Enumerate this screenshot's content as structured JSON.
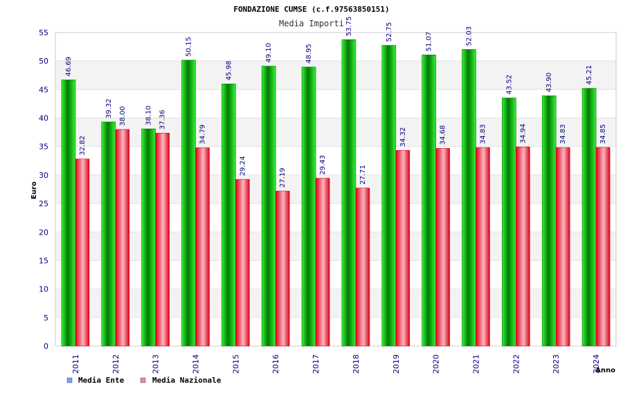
{
  "chart_data": {
    "type": "bar",
    "title": "FONDAZIONE CUMSE (c.f.97563850151)",
    "subtitle": "Media Importi",
    "xlabel": "Anno",
    "ylabel": "Euro",
    "ylim": [
      0,
      55
    ],
    "yticks": [
      0,
      5,
      10,
      15,
      20,
      25,
      30,
      35,
      40,
      45,
      50,
      55
    ],
    "categories": [
      "2011",
      "2012",
      "2013",
      "2014",
      "2015",
      "2016",
      "2017",
      "2018",
      "2019",
      "2020",
      "2021",
      "2022",
      "2023",
      "2024"
    ],
    "series": [
      {
        "name": "Media Ente",
        "values": [
          46.69,
          39.32,
          38.1,
          50.15,
          45.98,
          49.1,
          48.95,
          53.75,
          52.75,
          51.07,
          52.03,
          43.52,
          43.9,
          45.21
        ],
        "labels": [
          "46.69",
          "39.32",
          "38.10",
          "50.15",
          "45.98",
          "49.10",
          "48.95",
          "53.75",
          "52.75",
          "51.07",
          "52.03",
          "43.52",
          "43.90",
          "45.21"
        ]
      },
      {
        "name": "Media Nazionale",
        "values": [
          32.82,
          38.0,
          37.36,
          34.79,
          29.24,
          27.19,
          29.43,
          27.71,
          34.32,
          34.68,
          34.83,
          34.94,
          34.83,
          34.85
        ],
        "labels": [
          "32.82",
          "38.00",
          "37.36",
          "34.79",
          "29.24",
          "27.19",
          "29.43",
          "27.71",
          "34.32",
          "34.68",
          "34.83",
          "34.94",
          "34.83",
          "34.85"
        ]
      }
    ],
    "legend": [
      {
        "label": "Media Ente",
        "color": "#6fa8f0"
      },
      {
        "label": "Media Nazionale",
        "color": "#e48aa8"
      }
    ],
    "grid": true,
    "legend_position": "bottom-left"
  },
  "colors": {
    "ente_dark": "#007a00",
    "ente_light": "#36f236",
    "naz_dark": "#e0001a",
    "naz_light": "#f7b8be",
    "band": "#f3f3f3",
    "axis_text": "#00007a",
    "value_text": "#00007a"
  }
}
